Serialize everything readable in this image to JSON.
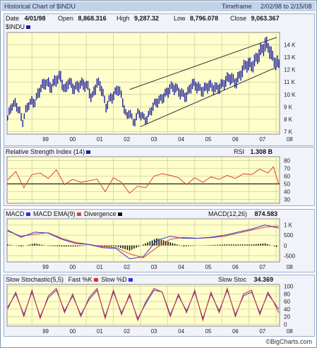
{
  "title_bar": {
    "title": "Historical Chart of $INDU",
    "timeframe_label": "Timeframe",
    "timeframe_value": "2/02/98 to   2/15/08"
  },
  "quote": {
    "date_label": "Date",
    "date": "4/01/98",
    "open_label": "Open",
    "open": "8,868.316",
    "high_label": "High",
    "high": "9,287.32",
    "low_label": "Low",
    "low": "8,796.078",
    "close_label": "Close",
    "close": "9,063.367"
  },
  "colors": {
    "background": "#ffffff",
    "panel": "#f1f3fa",
    "price_bar": "#1c1c9c",
    "rsi_line": "#d84438",
    "macd_line": "#3030d8",
    "macd_signal": "#e04040",
    "divergence": "#111111",
    "stoch_fast": "#d03030",
    "stoch_slow": "#3030e0",
    "channel": "#333333"
  },
  "footer": {
    "credit": "©BigCharts.com"
  },
  "chart_data": [
    {
      "type": "bar",
      "label": "$INDU",
      "subtype": "OHLC weekly price bars with trend channel",
      "x_ticks": [
        "99",
        "00",
        "01",
        "02",
        "03",
        "04",
        "05",
        "06",
        "07",
        "08"
      ],
      "y_ticks": [
        "7 K",
        "8 K",
        "9 K",
        "10 K",
        "11 K",
        "12 K",
        "13 K",
        "14 K"
      ],
      "ylim": [
        6800,
        15000
      ],
      "xlim": [
        1998.08,
        2008.13
      ],
      "grid": true,
      "x": [
        1998.1,
        1998.25,
        1998.4,
        1998.55,
        1998.65,
        1998.75,
        1998.9,
        1999.1,
        1999.3,
        1999.5,
        1999.7,
        1999.9,
        2000.05,
        2000.2,
        2000.35,
        2000.55,
        2000.75,
        2000.9,
        2001.05,
        2001.2,
        2001.4,
        2001.6,
        2001.72,
        2001.85,
        2002.0,
        2002.2,
        2002.35,
        2002.5,
        2002.6,
        2002.75,
        2002.9,
        2003.05,
        2003.2,
        2003.35,
        2003.5,
        2003.7,
        2003.9,
        2004.1,
        2004.3,
        2004.5,
        2004.7,
        2004.9,
        2005.1,
        2005.3,
        2005.5,
        2005.7,
        2005.9,
        2006.1,
        2006.3,
        2006.5,
        2006.7,
        2006.9,
        2007.1,
        2007.3,
        2007.5,
        2007.6,
        2007.75,
        2007.85,
        2008.0,
        2008.1
      ],
      "values": [
        8100,
        9000,
        9200,
        8700,
        7800,
        8600,
        9200,
        9400,
        10600,
        10900,
        10500,
        11400,
        11500,
        10100,
        11000,
        10600,
        10800,
        10700,
        10600,
        9800,
        11000,
        10200,
        8900,
        9700,
        10000,
        10400,
        9300,
        8200,
        8800,
        7600,
        8400,
        8300,
        8000,
        8600,
        9100,
        9500,
        10100,
        10500,
        10400,
        10200,
        9900,
        10700,
        10700,
        10400,
        10600,
        10500,
        10700,
        10900,
        11300,
        11100,
        11700,
        12300,
        12400,
        13100,
        13500,
        13900,
        13800,
        13200,
        12600,
        12300
      ],
      "channel_lines": [
        {
          "name": "upper",
          "from": [
            2002.6,
            10400
          ],
          "to": [
            2008.02,
            14600
          ]
        },
        {
          "name": "lower",
          "from": [
            2003.0,
            7400
          ],
          "to": [
            2008.02,
            12200
          ]
        }
      ]
    },
    {
      "type": "line",
      "title": "Relative Strength Index (14)",
      "value_label": "RSI",
      "value": "1.308 B",
      "y_ticks": [
        "30",
        "40",
        "50",
        "60",
        "70",
        "80"
      ],
      "ylim": [
        25,
        85
      ],
      "reference_line": 50,
      "x_ticks": [],
      "series": [
        {
          "x": [
            1998.1,
            1998.4,
            1998.7,
            1999.0,
            1999.3,
            1999.6,
            1999.9,
            2000.2,
            2000.5,
            2000.8,
            2001.1,
            2001.4,
            2001.7,
            2002.0,
            2002.3,
            2002.6,
            2002.9,
            2003.2,
            2003.5,
            2003.8,
            2004.1,
            2004.4,
            2004.7,
            2005.0,
            2005.3,
            2005.6,
            2005.9,
            2006.2,
            2006.5,
            2006.8,
            2007.1,
            2007.4,
            2007.7,
            2007.9,
            2008.1
          ],
          "values": [
            55,
            66,
            45,
            62,
            64,
            57,
            68,
            49,
            56,
            52,
            54,
            56,
            40,
            58,
            52,
            38,
            47,
            45,
            60,
            63,
            61,
            58,
            49,
            58,
            52,
            59,
            56,
            61,
            57,
            63,
            62,
            69,
            64,
            72,
            50
          ]
        }
      ]
    },
    {
      "type": "line",
      "title": "MACD(12,26)",
      "legend": [
        "MACD",
        "MACD EMA(9)",
        "Divergence"
      ],
      "value_label": "MACD(12,26)",
      "value": "874.583",
      "y_ticks": [
        "-500",
        "0",
        "500",
        "1 K"
      ],
      "ylim": [
        -800,
        1300
      ],
      "x_ticks": [
        "99",
        "00",
        "01",
        "02",
        "03",
        "04",
        "05",
        "06",
        "07",
        "08"
      ],
      "x": [
        1998.1,
        1998.6,
        1999.1,
        1999.6,
        2000.1,
        2000.6,
        2001.1,
        2001.6,
        2002.1,
        2002.6,
        2003.1,
        2003.6,
        2004.1,
        2004.6,
        2005.1,
        2005.6,
        2006.1,
        2006.6,
        2007.1,
        2007.6,
        2008.1
      ],
      "series": [
        {
          "name": "MACD",
          "values": [
            750,
            400,
            650,
            600,
            300,
            100,
            50,
            -100,
            -150,
            -650,
            -550,
            250,
            450,
            350,
            350,
            400,
            500,
            650,
            800,
            1000,
            850
          ]
        },
        {
          "name": "MACD EMA(9)",
          "values": [
            700,
            450,
            550,
            620,
            350,
            150,
            50,
            -50,
            -100,
            -400,
            -600,
            -100,
            300,
            400,
            350,
            380,
            450,
            600,
            750,
            900,
            950
          ]
        },
        {
          "name": "Divergence",
          "values": [
            50,
            -50,
            100,
            -20,
            -50,
            -50,
            0,
            -50,
            -50,
            -250,
            50,
            350,
            150,
            -50,
            0,
            20,
            50,
            50,
            50,
            100,
            -100
          ]
        }
      ]
    },
    {
      "type": "line",
      "title": "Slow Stochastic(5,5)",
      "legend": [
        "Fast %K",
        "Slow %D"
      ],
      "value_label": "Slow Stoc",
      "value": "34.369",
      "y_ticks": [
        "0",
        "20",
        "40",
        "60",
        "80",
        "100"
      ],
      "ylim": [
        -5,
        105
      ],
      "x_ticks": [
        "99",
        "00",
        "01",
        "02",
        "03",
        "04",
        "05",
        "06",
        "07",
        "08"
      ],
      "x": [
        1998.1,
        1998.4,
        1998.7,
        1999.0,
        1999.3,
        1999.6,
        1999.9,
        2000.2,
        2000.5,
        2000.8,
        2001.1,
        2001.4,
        2001.7,
        2002.0,
        2002.3,
        2002.6,
        2002.9,
        2003.2,
        2003.5,
        2003.8,
        2004.1,
        2004.4,
        2004.7,
        2005.0,
        2005.3,
        2005.6,
        2005.9,
        2006.2,
        2006.5,
        2006.8,
        2007.1,
        2007.4,
        2007.7,
        2007.9,
        2008.1
      ],
      "series": [
        {
          "name": "Fast %K",
          "values": [
            40,
            85,
            20,
            90,
            15,
            75,
            95,
            30,
            80,
            20,
            70,
            95,
            15,
            90,
            25,
            80,
            10,
            60,
            95,
            85,
            20,
            80,
            30,
            90,
            10,
            85,
            30,
            95,
            20,
            80,
            90,
            25,
            85,
            60,
            30
          ]
        },
        {
          "name": "Slow %D",
          "values": [
            45,
            80,
            25,
            85,
            20,
            70,
            90,
            35,
            75,
            25,
            65,
            90,
            20,
            85,
            30,
            75,
            15,
            55,
            90,
            85,
            25,
            75,
            35,
            85,
            15,
            80,
            35,
            90,
            25,
            75,
            85,
            30,
            80,
            60,
            40
          ]
        }
      ]
    }
  ]
}
